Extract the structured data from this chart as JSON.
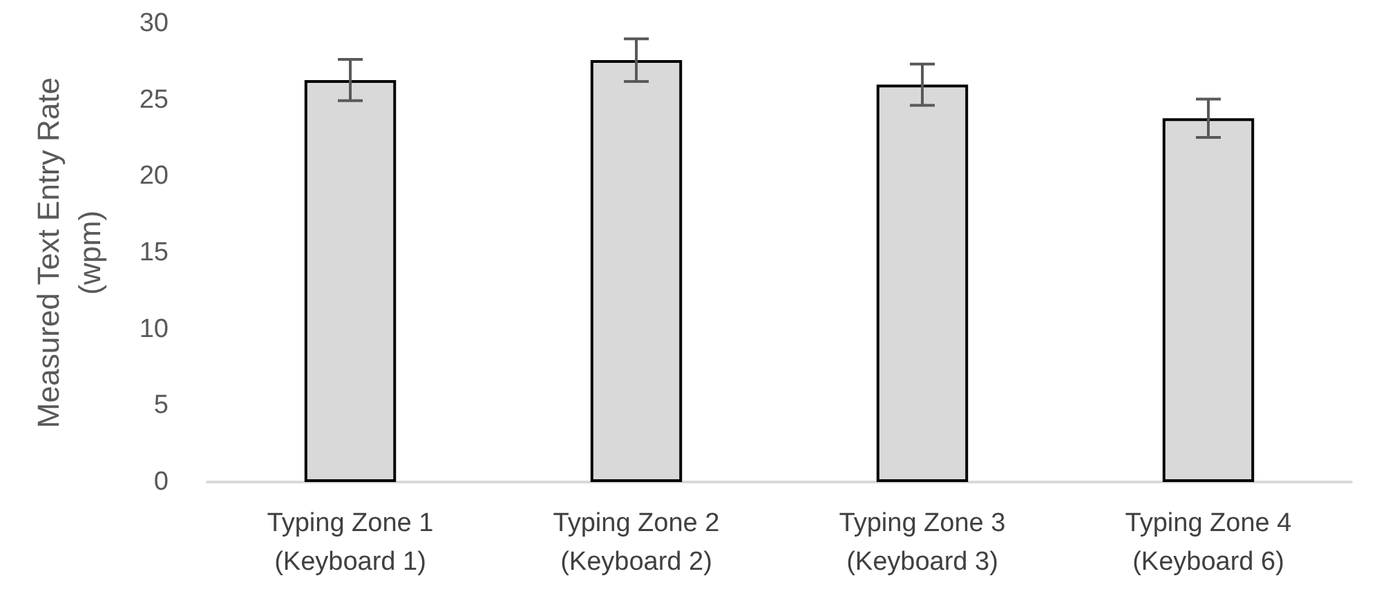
{
  "chart_data": {
    "type": "bar",
    "ylabel": "Measured Text Entry Rate\n(wpm)",
    "categories": [
      "Typing Zone 1\n(Keyboard 1)",
      "Typing Zone 2\n(Keyboard 2)",
      "Typing Zone 3\n(Keyboard 3)",
      "Typing Zone 4\n(Keyboard 6)"
    ],
    "values": [
      26.3,
      27.6,
      26.0,
      23.8
    ],
    "errors": [
      1.35,
      1.4,
      1.35,
      1.25
    ],
    "color": "#d9d9d9",
    "ylim": [
      0,
      30
    ],
    "yticks": [
      0,
      5,
      10,
      15,
      20,
      25,
      30
    ],
    "grid": false
  }
}
